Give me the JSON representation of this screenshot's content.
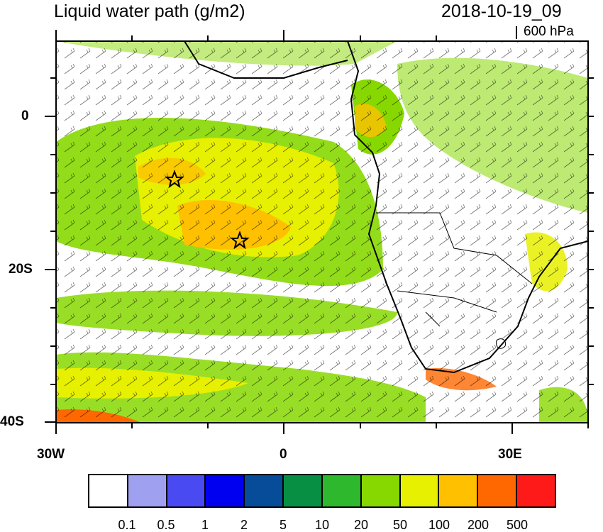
{
  "header": {
    "title": "Liquid water path (g/m2)",
    "datetime": "2018-10-19_09",
    "level": "600 hPa"
  },
  "axes": {
    "lat_labels": [
      "0",
      "20S",
      "40S"
    ],
    "lon_labels": [
      "30W",
      "0",
      "30E"
    ],
    "lat_range": [
      -40,
      10
    ],
    "lon_range": [
      -30,
      40
    ]
  },
  "map": {
    "ocean_color": "#ffffff",
    "coastline_color": "#000000",
    "wind_barb_color": "#000000",
    "markers": [
      {
        "type": "star",
        "lon": -14.3,
        "lat": -8.0
      },
      {
        "type": "star",
        "lon": -5.7,
        "lat": -15.9
      }
    ]
  },
  "colorbar": {
    "colors": [
      "#ffffff",
      "#a0a0f0",
      "#4a4af2",
      "#0000f0",
      "#064c98",
      "#079043",
      "#2eb82e",
      "#87d800",
      "#e6f000",
      "#ffc000",
      "#ff6800",
      "#ff1a1a"
    ],
    "labels": [
      "0.1",
      "0.5",
      "1",
      "2",
      "5",
      "10",
      "20",
      "50",
      "100",
      "200",
      "500"
    ]
  }
}
